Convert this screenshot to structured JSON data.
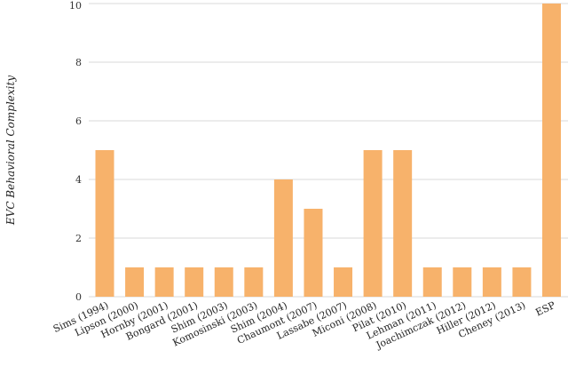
{
  "chart_data": {
    "type": "bar",
    "title": "",
    "xlabel": "",
    "ylabel": "EVC Behavioral Complexity",
    "categories": [
      "Sims (1994)",
      "Lipson (2000)",
      "Hornby (2001)",
      "Bongard (2001)",
      "Shim (2003)",
      "Komosinski (2003)",
      "Shim (2004)",
      "Chaumont (2007)",
      "Lassabe (2007)",
      "Miconi (2008)",
      "Pilat (2010)",
      "Lehman (2011)",
      "Joachimczak (2012)",
      "Hiller (2012)",
      "Cheney (2013)",
      "ESP"
    ],
    "values": [
      5,
      1,
      1,
      1,
      1,
      1,
      4,
      3,
      1,
      5,
      5,
      1,
      1,
      1,
      1,
      10
    ],
    "ylim": [
      0,
      10
    ],
    "yticks": [
      0,
      2,
      4,
      6,
      8,
      10
    ],
    "grid": true,
    "bar_color": "#f7b26b",
    "grid_color": "#d9d9d9"
  }
}
